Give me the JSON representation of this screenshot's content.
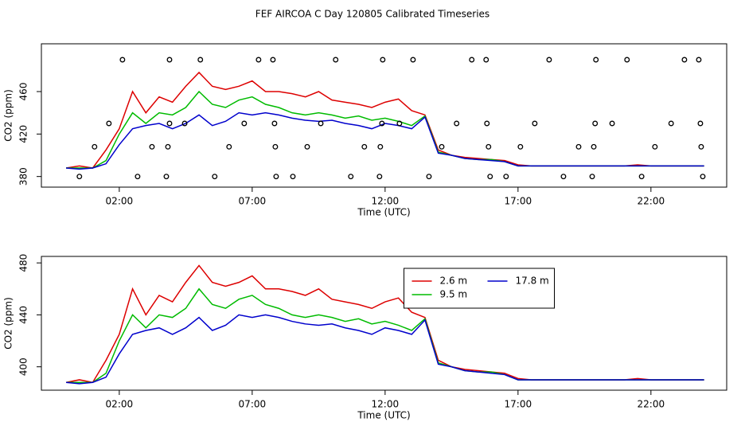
{
  "title": "FEF AIRCOA C  Day 120805  Calibrated Timeseries",
  "chart_data": [
    {
      "type": "line",
      "xlabel": "Time (UTC)",
      "ylabel": "CO2 (ppm)",
      "xlim": [
        -0.93,
        24.85
      ],
      "ylim": [
        370,
        505
      ],
      "xticks": [
        {
          "value": 2,
          "label": "02:00"
        },
        {
          "value": 7,
          "label": "07:00"
        },
        {
          "value": 12,
          "label": "12:00"
        },
        {
          "value": 17,
          "label": "17:00"
        },
        {
          "value": 22,
          "label": "22:00"
        }
      ],
      "yticks": [
        380,
        420,
        460
      ],
      "x": [
        0,
        0.5,
        1,
        1.5,
        2,
        2.5,
        3,
        3.5,
        4,
        4.5,
        5,
        5.5,
        6,
        6.5,
        7,
        7.5,
        8,
        8.5,
        9,
        9.5,
        10,
        10.5,
        11,
        11.5,
        12,
        12.5,
        13,
        13.5,
        14,
        14.5,
        15,
        15.5,
        16,
        16.5,
        17,
        17.5,
        18,
        18.5,
        19,
        19.5,
        20,
        20.5,
        21,
        21.5,
        22,
        22.5,
        23,
        23.5,
        24
      ],
      "series": [
        {
          "color": "#dd0000",
          "values": [
            388,
            390,
            388,
            405,
            425,
            460,
            440,
            455,
            450,
            465,
            478,
            465,
            462,
            465,
            470,
            460,
            460,
            458,
            455,
            460,
            452,
            450,
            448,
            445,
            450,
            453,
            442,
            438,
            405,
            400,
            398,
            397,
            396,
            395,
            391,
            390,
            390,
            390,
            390,
            390,
            390,
            390,
            390,
            391,
            390,
            390,
            390,
            390,
            390
          ]
        },
        {
          "color": "#00bb00",
          "values": [
            388,
            388,
            388,
            395,
            420,
            440,
            430,
            440,
            438,
            445,
            460,
            448,
            445,
            452,
            455,
            448,
            445,
            440,
            438,
            440,
            438,
            435,
            437,
            433,
            435,
            432,
            428,
            437,
            403,
            400,
            397,
            396,
            396,
            394,
            390,
            390,
            390,
            390,
            390,
            390,
            390,
            390,
            390,
            390,
            390,
            390,
            390,
            390,
            390
          ]
        },
        {
          "color": "#0000cc",
          "values": [
            388,
            387,
            388,
            392,
            410,
            425,
            428,
            430,
            425,
            430,
            438,
            428,
            432,
            440,
            438,
            440,
            438,
            435,
            433,
            432,
            433,
            430,
            428,
            425,
            430,
            428,
            425,
            436,
            402,
            400,
            397,
            396,
            395,
            394,
            390,
            390,
            390,
            390,
            390,
            390,
            390,
            390,
            390,
            390,
            390,
            390,
            390,
            390,
            390
          ]
        }
      ],
      "markers": {
        "color": "#000000",
        "x": [
          2.12,
          3.89,
          5.05,
          7.24,
          7.78,
          10.14,
          11.91,
          13.05,
          15.26,
          15.8,
          18.17,
          19.93,
          21.1,
          23.26,
          23.8,
          1.61,
          3.89,
          4.46,
          6.7,
          7.84,
          9.58,
          11.88,
          12.54,
          14.69,
          15.83,
          17.63,
          19.9,
          20.54,
          22.76,
          23.86,
          1.07,
          3.23,
          3.83,
          6.13,
          7.87,
          9.07,
          11.22,
          11.82,
          14.13,
          15.89,
          17.09,
          19.28,
          19.85,
          22.15,
          23.89,
          0.5,
          2.69,
          3.77,
          5.59,
          7.9,
          8.53,
          10.71,
          11.79,
          13.65,
          15.95,
          16.55,
          18.71,
          19.79,
          21.65,
          23.95
        ],
        "values": [
          490,
          490,
          490,
          490,
          490,
          490,
          490,
          490,
          490,
          490,
          490,
          490,
          490,
          490,
          490,
          430,
          430,
          430,
          430,
          430,
          430,
          430,
          430,
          430,
          430,
          430,
          430,
          430,
          430,
          430,
          408,
          408,
          408,
          408,
          408,
          408,
          408,
          408,
          408,
          408,
          408,
          408,
          408,
          408,
          408,
          380,
          380,
          380,
          380,
          380,
          380,
          380,
          380,
          380,
          380,
          380,
          380,
          380,
          380,
          380
        ]
      }
    },
    {
      "type": "line",
      "xlabel": "Time (UTC)",
      "ylabel": "CO2 (ppm)",
      "xlim": [
        -0.93,
        24.85
      ],
      "ylim": [
        382,
        485
      ],
      "xticks": [
        {
          "value": 2,
          "label": "02:00"
        },
        {
          "value": 7,
          "label": "07:00"
        },
        {
          "value": 12,
          "label": "12:00"
        },
        {
          "value": 17,
          "label": "17:00"
        },
        {
          "value": 22,
          "label": "22:00"
        }
      ],
      "yticks": [
        400,
        440,
        480
      ],
      "legend": "top-center",
      "x": [
        0,
        0.5,
        1,
        1.5,
        2,
        2.5,
        3,
        3.5,
        4,
        4.5,
        5,
        5.5,
        6,
        6.5,
        7,
        7.5,
        8,
        8.5,
        9,
        9.5,
        10,
        10.5,
        11,
        11.5,
        12,
        12.5,
        13,
        13.5,
        14,
        14.5,
        15,
        15.5,
        16,
        16.5,
        17,
        17.5,
        18,
        18.5,
        19,
        19.5,
        20,
        20.5,
        21,
        21.5,
        22,
        22.5,
        23,
        23.5,
        24
      ],
      "series": [
        {
          "name": "2.6 m",
          "color": "#dd0000",
          "values": [
            388,
            390,
            388,
            405,
            425,
            460,
            440,
            455,
            450,
            465,
            478,
            465,
            462,
            465,
            470,
            460,
            460,
            458,
            455,
            460,
            452,
            450,
            448,
            445,
            450,
            453,
            442,
            438,
            405,
            400,
            398,
            397,
            396,
            395,
            391,
            390,
            390,
            390,
            390,
            390,
            390,
            390,
            390,
            391,
            390,
            390,
            390,
            390,
            390
          ]
        },
        {
          "name": "9.5 m",
          "color": "#00bb00",
          "values": [
            388,
            388,
            388,
            395,
            420,
            440,
            430,
            440,
            438,
            445,
            460,
            448,
            445,
            452,
            455,
            448,
            445,
            440,
            438,
            440,
            438,
            435,
            437,
            433,
            435,
            432,
            428,
            437,
            403,
            400,
            397,
            396,
            396,
            394,
            390,
            390,
            390,
            390,
            390,
            390,
            390,
            390,
            390,
            390,
            390,
            390,
            390,
            390,
            390
          ]
        },
        {
          "name": "17.8 m",
          "color": "#0000cc",
          "values": [
            388,
            387,
            388,
            392,
            410,
            425,
            428,
            430,
            425,
            430,
            438,
            428,
            432,
            440,
            438,
            440,
            438,
            435,
            433,
            432,
            433,
            430,
            428,
            425,
            430,
            428,
            425,
            436,
            402,
            400,
            397,
            396,
            395,
            394,
            390,
            390,
            390,
            390,
            390,
            390,
            390,
            390,
            390,
            390,
            390,
            390,
            390,
            390,
            390
          ]
        }
      ]
    }
  ]
}
